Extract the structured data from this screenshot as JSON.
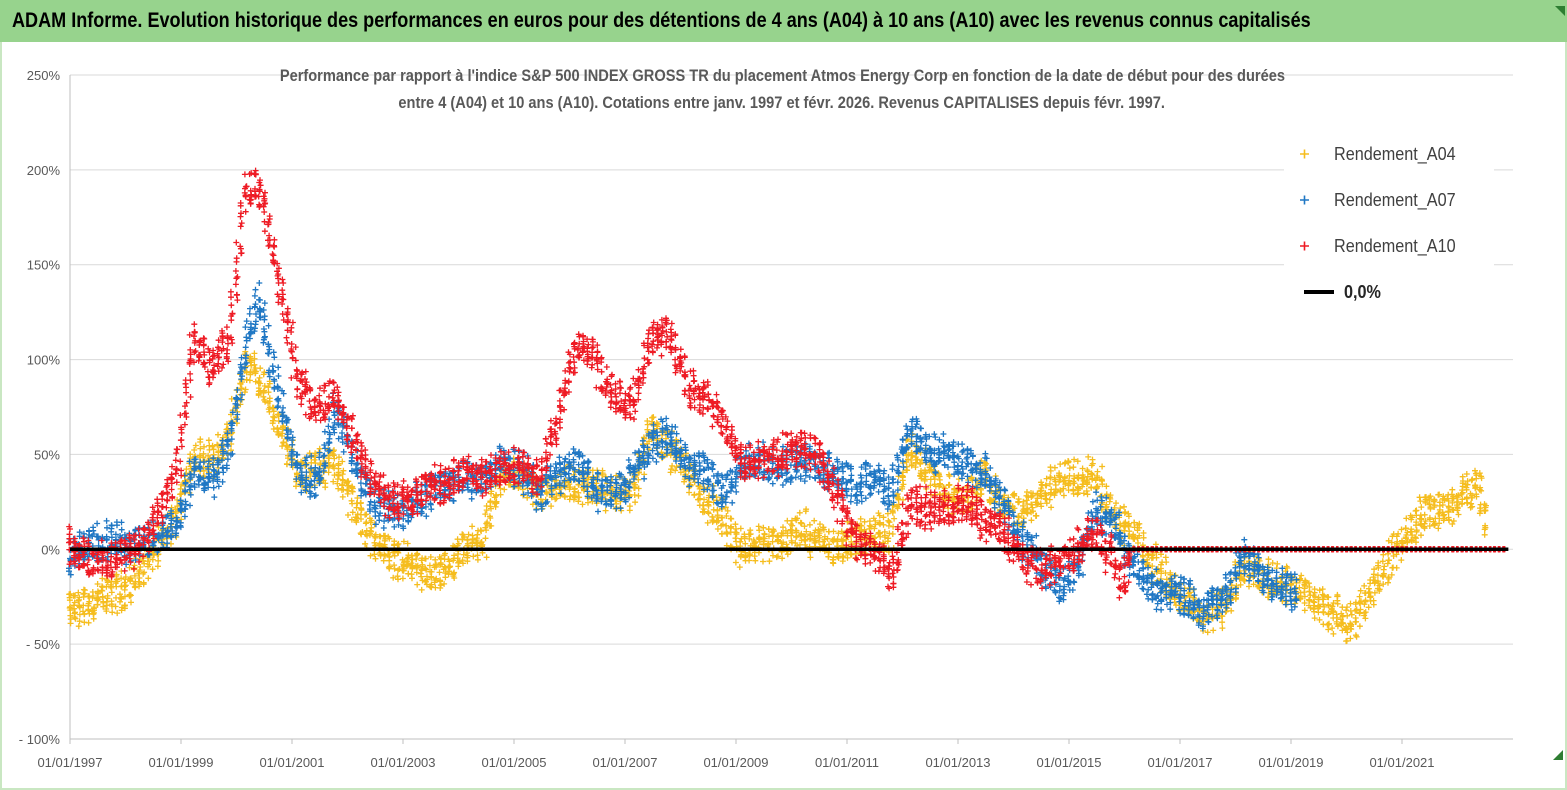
{
  "header": {
    "title": "ADAM Informe. Evolution historique des performances en euros pour des détentions de 4 ans (A04) à 10 ans (A10) avec les revenus connus capitalisés"
  },
  "colors": {
    "header_bg": "#97d38d",
    "a04": "#f5bd1e",
    "a07": "#1f77c4",
    "a10": "#ee1b24",
    "zero": "#000000"
  },
  "chart_data": {
    "type": "scatter",
    "title_line1": "Performance par rapport à l'indice S&P 500 INDEX GROSS TR  du placement Atmos Energy Corp en fonction de la date de début pour des durées",
    "title_line2": "entre 4 (A04) et 10 ans (A10). Cotations entre janv. 1997 et févr. 2026. Revenus CAPITALISES depuis févr. 1997.",
    "xlabel": "",
    "ylabel": "",
    "xlim": [
      "1997-01-01",
      "2023-01-01"
    ],
    "ylim": [
      -100,
      250
    ],
    "grid": true,
    "legend_position": "right",
    "x_ticks": [
      "01/01/1997",
      "01/01/1999",
      "01/01/2001",
      "01/01/2003",
      "01/01/2005",
      "01/01/2007",
      "01/01/2009",
      "01/01/2011",
      "01/01/2013",
      "01/01/2015",
      "01/01/2017",
      "01/01/2019",
      "01/01/2021"
    ],
    "y_ticks": [
      "250%",
      "200%",
      "150%",
      "100%",
      "50%",
      "0%",
      "- 50%",
      "- 100%"
    ],
    "series": [
      {
        "name": "Rendement_A04",
        "marker": "+",
        "points": [
          [
            "1997-01",
            -33
          ],
          [
            "1997-06",
            -28
          ],
          [
            "1997-10",
            -24
          ],
          [
            "1998-02",
            -20
          ],
          [
            "1998-06",
            -8
          ],
          [
            "1998-10",
            6
          ],
          [
            "1999-01",
            22
          ],
          [
            "1999-04",
            50
          ],
          [
            "1999-08",
            45
          ],
          [
            "1999-12",
            60
          ],
          [
            "2000-04",
            100
          ],
          [
            "2000-08",
            82
          ],
          [
            "2000-12",
            55
          ],
          [
            "2001-03",
            40
          ],
          [
            "2001-07",
            42
          ],
          [
            "2001-11",
            45
          ],
          [
            "2002-03",
            22
          ],
          [
            "2002-07",
            5
          ],
          [
            "2002-11",
            -3
          ],
          [
            "2003-03",
            -8
          ],
          [
            "2003-07",
            -14
          ],
          [
            "2003-11",
            -12
          ],
          [
            "2004-03",
            0
          ],
          [
            "2004-07",
            5
          ],
          [
            "2004-11",
            40
          ],
          [
            "2005-03",
            38
          ],
          [
            "2005-07",
            30
          ],
          [
            "2005-11",
            35
          ],
          [
            "2006-03",
            34
          ],
          [
            "2006-07",
            33
          ],
          [
            "2006-11",
            28
          ],
          [
            "2007-03",
            30
          ],
          [
            "2007-07",
            65
          ],
          [
            "2007-11",
            55
          ],
          [
            "2008-03",
            40
          ],
          [
            "2008-07",
            25
          ],
          [
            "2008-11",
            15
          ],
          [
            "2009-03",
            0
          ],
          [
            "2009-07",
            5
          ],
          [
            "2009-11",
            2
          ],
          [
            "2010-03",
            12
          ],
          [
            "2010-07",
            5
          ],
          [
            "2010-11",
            2
          ],
          [
            "2011-03",
            5
          ],
          [
            "2011-07",
            8
          ],
          [
            "2011-11",
            10
          ],
          [
            "2012-03",
            55
          ],
          [
            "2012-07",
            40
          ],
          [
            "2012-11",
            30
          ],
          [
            "2013-03",
            25
          ],
          [
            "2013-07",
            40
          ],
          [
            "2013-11",
            22
          ],
          [
            "2014-03",
            18
          ],
          [
            "2014-07",
            28
          ],
          [
            "2014-11",
            35
          ],
          [
            "2015-03",
            40
          ],
          [
            "2015-07",
            38
          ],
          [
            "2015-11",
            20
          ],
          [
            "2016-03",
            10
          ],
          [
            "2016-07",
            -5
          ],
          [
            "2016-11",
            -18
          ],
          [
            "2017-03",
            -28
          ],
          [
            "2017-07",
            -36
          ],
          [
            "2017-11",
            -30
          ],
          [
            "2018-03",
            -10
          ],
          [
            "2018-07",
            -15
          ],
          [
            "2018-11",
            -18
          ],
          [
            "2019-03",
            -22
          ],
          [
            "2019-07",
            -28
          ],
          [
            "2019-11",
            -35
          ],
          [
            "2020-03",
            -38
          ],
          [
            "2020-07",
            -20
          ],
          [
            "2020-11",
            -5
          ],
          [
            "2021-03",
            10
          ],
          [
            "2021-07",
            22
          ],
          [
            "2021-11",
            20
          ],
          [
            "2022-03",
            30
          ],
          [
            "2022-06",
            35
          ],
          [
            "2022-08",
            10
          ]
        ]
      },
      {
        "name": "Rendement_A07",
        "marker": "+",
        "points": [
          [
            "1997-01",
            -4
          ],
          [
            "1997-06",
            2
          ],
          [
            "1997-10",
            5
          ],
          [
            "1998-02",
            2
          ],
          [
            "1998-06",
            5
          ],
          [
            "1998-10",
            8
          ],
          [
            "1999-01",
            15
          ],
          [
            "1999-04",
            42
          ],
          [
            "1999-08",
            38
          ],
          [
            "1999-12",
            55
          ],
          [
            "2000-03",
            100
          ],
          [
            "2000-06",
            135
          ],
          [
            "2000-09",
            95
          ],
          [
            "2000-12",
            70
          ],
          [
            "2001-03",
            40
          ],
          [
            "2001-07",
            35
          ],
          [
            "2001-11",
            75
          ],
          [
            "2002-03",
            45
          ],
          [
            "2002-07",
            25
          ],
          [
            "2002-11",
            20
          ],
          [
            "2003-03",
            22
          ],
          [
            "2003-07",
            30
          ],
          [
            "2003-11",
            35
          ],
          [
            "2004-03",
            35
          ],
          [
            "2004-07",
            38
          ],
          [
            "2004-11",
            45
          ],
          [
            "2005-03",
            42
          ],
          [
            "2005-07",
            30
          ],
          [
            "2005-11",
            40
          ],
          [
            "2006-03",
            45
          ],
          [
            "2006-07",
            32
          ],
          [
            "2006-11",
            28
          ],
          [
            "2007-03",
            40
          ],
          [
            "2007-07",
            55
          ],
          [
            "2007-11",
            60
          ],
          [
            "2008-03",
            45
          ],
          [
            "2008-07",
            40
          ],
          [
            "2008-11",
            30
          ],
          [
            "2009-03",
            45
          ],
          [
            "2009-07",
            45
          ],
          [
            "2009-11",
            42
          ],
          [
            "2010-03",
            45
          ],
          [
            "2010-07",
            45
          ],
          [
            "2010-11",
            40
          ],
          [
            "2011-03",
            35
          ],
          [
            "2011-07",
            38
          ],
          [
            "2011-11",
            30
          ],
          [
            "2012-03",
            65
          ],
          [
            "2012-07",
            50
          ],
          [
            "2012-11",
            50
          ],
          [
            "2013-03",
            45
          ],
          [
            "2013-07",
            40
          ],
          [
            "2013-11",
            25
          ],
          [
            "2014-03",
            5
          ],
          [
            "2014-07",
            -5
          ],
          [
            "2014-11",
            -20
          ],
          [
            "2015-03",
            -10
          ],
          [
            "2015-07",
            20
          ],
          [
            "2015-11",
            15
          ],
          [
            "2016-03",
            -5
          ],
          [
            "2016-07",
            -20
          ],
          [
            "2016-11",
            -22
          ],
          [
            "2017-03",
            -25
          ],
          [
            "2017-07",
            -32
          ],
          [
            "2017-11",
            -25
          ],
          [
            "2018-03",
            -5
          ],
          [
            "2018-07",
            -12
          ],
          [
            "2018-11",
            -18
          ],
          [
            "2019-03",
            -25
          ]
        ]
      },
      {
        "name": "Rendement_A10",
        "marker": "+",
        "points": [
          [
            "1997-01",
            2
          ],
          [
            "1997-06",
            -5
          ],
          [
            "1997-10",
            -8
          ],
          [
            "1998-02",
            0
          ],
          [
            "1998-06",
            5
          ],
          [
            "1998-10",
            25
          ],
          [
            "1999-01",
            45
          ],
          [
            "1999-04",
            110
          ],
          [
            "1999-08",
            95
          ],
          [
            "1999-12",
            110
          ],
          [
            "2000-03",
            185
          ],
          [
            "2000-06",
            195
          ],
          [
            "2000-09",
            160
          ],
          [
            "2000-12",
            125
          ],
          [
            "2001-03",
            85
          ],
          [
            "2001-07",
            75
          ],
          [
            "2001-11",
            82
          ],
          [
            "2002-03",
            55
          ],
          [
            "2002-07",
            35
          ],
          [
            "2002-11",
            25
          ],
          [
            "2003-03",
            25
          ],
          [
            "2003-07",
            35
          ],
          [
            "2003-11",
            35
          ],
          [
            "2004-03",
            40
          ],
          [
            "2004-07",
            38
          ],
          [
            "2004-11",
            42
          ],
          [
            "2005-03",
            45
          ],
          [
            "2005-07",
            35
          ],
          [
            "2005-11",
            70
          ],
          [
            "2006-03",
            110
          ],
          [
            "2006-07",
            100
          ],
          [
            "2006-11",
            80
          ],
          [
            "2007-03",
            75
          ],
          [
            "2007-07",
            110
          ],
          [
            "2007-11",
            115
          ],
          [
            "2008-03",
            85
          ],
          [
            "2008-07",
            80
          ],
          [
            "2008-11",
            65
          ],
          [
            "2009-03",
            45
          ],
          [
            "2009-07",
            48
          ],
          [
            "2009-11",
            50
          ],
          [
            "2010-03",
            55
          ],
          [
            "2010-07",
            50
          ],
          [
            "2010-11",
            30
          ],
          [
            "2011-03",
            5
          ],
          [
            "2011-07",
            0
          ],
          [
            "2011-11",
            -15
          ],
          [
            "2012-03",
            25
          ],
          [
            "2012-07",
            20
          ],
          [
            "2012-11",
            20
          ],
          [
            "2013-03",
            25
          ],
          [
            "2013-07",
            15
          ],
          [
            "2013-11",
            10
          ],
          [
            "2014-03",
            -5
          ],
          [
            "2014-07",
            -10
          ],
          [
            "2014-11",
            -8
          ],
          [
            "2015-03",
            0
          ],
          [
            "2015-07",
            10
          ],
          [
            "2015-11",
            -5
          ],
          [
            "2016-01",
            -20
          ],
          [
            "2016-03",
            0
          ],
          [
            "2017-01",
            0
          ],
          [
            "2018-01",
            0
          ],
          [
            "2019-01",
            0
          ],
          [
            "2020-01",
            0
          ],
          [
            "2021-01",
            0
          ],
          [
            "2022-01",
            0
          ],
          [
            "2022-12",
            0
          ]
        ]
      },
      {
        "name": "0,0%",
        "type": "line",
        "points": [
          [
            "1997-01",
            0
          ],
          [
            "2022-12",
            0
          ]
        ]
      }
    ]
  }
}
